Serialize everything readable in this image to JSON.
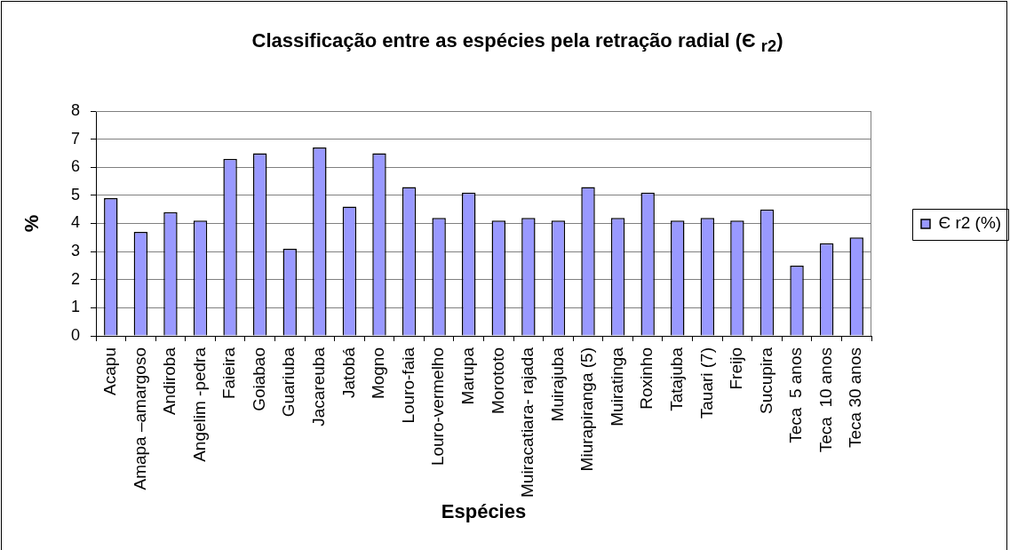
{
  "chart_data": {
    "type": "bar",
    "title": "Classificação entre as espécies pela retração radial (Є $_{r2}$)",
    "xlabel": "Espécies",
    "ylabel": "%",
    "categories": [
      "Acapu",
      "Amapa –amargoso",
      "Andiroba",
      "Angelim -pedra",
      "Faieira",
      "Goiabao",
      "Guariuba",
      "Jacareuba",
      "Jatobá",
      "Mogno",
      "Louro-faia",
      "Louro-vermelho",
      "Marupa",
      "Morototo",
      "Muiracatiara- rajada",
      "Muirajuba",
      "Miurapiranga (5)",
      "Muiratinga",
      "Roxinho",
      "Tatajuba",
      "Tauari (7)",
      "Freijo",
      "Sucupira",
      "Teca  5 anos",
      "Teca  10 anos",
      "Teca 30 anos"
    ],
    "series": [
      {
        "name": "Є r2 (%)",
        "color": "#9999ff",
        "values": [
          4.9,
          3.7,
          4.4,
          4.1,
          6.3,
          6.5,
          3.1,
          6.7,
          4.6,
          6.5,
          5.3,
          4.2,
          5.1,
          4.1,
          4.2,
          4.1,
          5.3,
          4.2,
          5.1,
          4.1,
          4.2,
          4.1,
          4.5,
          2.5,
          3.3,
          3.5
        ]
      }
    ],
    "ylim": [
      0,
      8
    ],
    "yticks": [
      0,
      1,
      2,
      3,
      4,
      5,
      6,
      7,
      8
    ],
    "grid": "y",
    "legend": "right"
  }
}
